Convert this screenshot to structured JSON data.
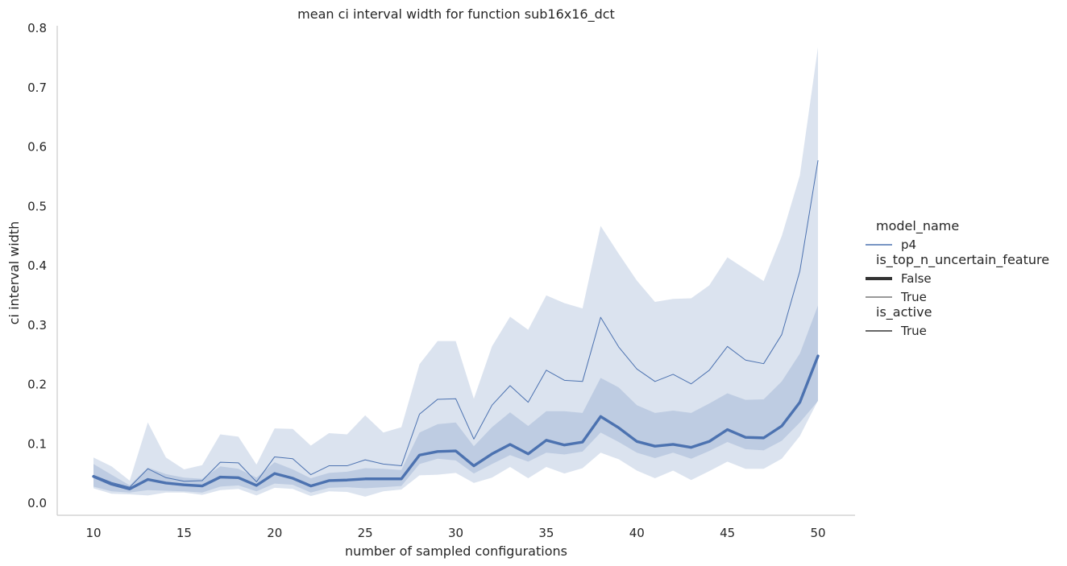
{
  "chart_data": {
    "type": "line",
    "title": "mean ci interval width for function sub16x16_dct",
    "xlabel": "number of sampled configurations",
    "ylabel": "ci interval width",
    "xlim": [
      8,
      52
    ],
    "ylim": [
      -0.022,
      0.8
    ],
    "xticks": [
      "10",
      "15",
      "20",
      "25",
      "30",
      "35",
      "40",
      "45",
      "50"
    ],
    "yticks": [
      "0.0",
      "0.1",
      "0.2",
      "0.3",
      "0.4",
      "0.5",
      "0.6",
      "0.7",
      "0.8"
    ],
    "grid": false,
    "legend_position": "right",
    "x": [
      10,
      11,
      12,
      13,
      14,
      15,
      16,
      17,
      18,
      19,
      20,
      21,
      22,
      23,
      24,
      25,
      26,
      27,
      28,
      29,
      30,
      31,
      32,
      33,
      34,
      35,
      36,
      37,
      38,
      39,
      40,
      41,
      42,
      43,
      44,
      45,
      46,
      47,
      48,
      49,
      50
    ],
    "series": [
      {
        "name": "False",
        "style": "thick",
        "color": "#4c72b0",
        "values": [
          0.045,
          0.032,
          0.024,
          0.04,
          0.034,
          0.031,
          0.029,
          0.044,
          0.043,
          0.03,
          0.05,
          0.042,
          0.029,
          0.038,
          0.039,
          0.041,
          0.041,
          0.041,
          0.081,
          0.087,
          0.088,
          0.063,
          0.083,
          0.099,
          0.083,
          0.106,
          0.098,
          0.103,
          0.146,
          0.127,
          0.104,
          0.096,
          0.099,
          0.094,
          0.104,
          0.124,
          0.111,
          0.11,
          0.13,
          0.17,
          0.248
        ],
        "ci_low": [
          0.028,
          0.02,
          0.018,
          0.022,
          0.021,
          0.02,
          0.018,
          0.028,
          0.03,
          0.02,
          0.033,
          0.031,
          0.018,
          0.026,
          0.027,
          0.025,
          0.027,
          0.029,
          0.066,
          0.075,
          0.072,
          0.05,
          0.066,
          0.081,
          0.07,
          0.085,
          0.082,
          0.087,
          0.119,
          0.103,
          0.085,
          0.076,
          0.085,
          0.075,
          0.088,
          0.103,
          0.091,
          0.089,
          0.105,
          0.136,
          0.172
        ],
        "ci_high": [
          0.066,
          0.048,
          0.03,
          0.06,
          0.049,
          0.043,
          0.041,
          0.062,
          0.058,
          0.043,
          0.069,
          0.057,
          0.042,
          0.051,
          0.053,
          0.059,
          0.058,
          0.056,
          0.119,
          0.133,
          0.136,
          0.096,
          0.128,
          0.153,
          0.13,
          0.155,
          0.155,
          0.152,
          0.211,
          0.195,
          0.165,
          0.152,
          0.156,
          0.152,
          0.168,
          0.185,
          0.174,
          0.175,
          0.205,
          0.252,
          0.333
        ]
      },
      {
        "name": "True",
        "style": "thin",
        "color": "#4c72b0",
        "values": [
          0.047,
          0.035,
          0.027,
          0.058,
          0.043,
          0.037,
          0.038,
          0.069,
          0.068,
          0.036,
          0.078,
          0.075,
          0.048,
          0.063,
          0.063,
          0.073,
          0.066,
          0.063,
          0.15,
          0.175,
          0.176,
          0.108,
          0.165,
          0.198,
          0.17,
          0.224,
          0.207,
          0.205,
          0.313,
          0.263,
          0.226,
          0.205,
          0.217,
          0.201,
          0.224,
          0.264,
          0.241,
          0.235,
          0.284,
          0.391,
          0.577
        ],
        "ci_low": [
          0.025,
          0.016,
          0.015,
          0.013,
          0.018,
          0.018,
          0.014,
          0.022,
          0.024,
          0.013,
          0.026,
          0.024,
          0.012,
          0.02,
          0.019,
          0.011,
          0.02,
          0.023,
          0.047,
          0.048,
          0.051,
          0.034,
          0.043,
          0.061,
          0.042,
          0.061,
          0.05,
          0.059,
          0.085,
          0.074,
          0.055,
          0.042,
          0.055,
          0.039,
          0.054,
          0.07,
          0.058,
          0.058,
          0.075,
          0.113,
          0.173
        ],
        "ci_high": [
          0.077,
          0.062,
          0.038,
          0.136,
          0.077,
          0.057,
          0.064,
          0.116,
          0.112,
          0.065,
          0.126,
          0.125,
          0.097,
          0.118,
          0.116,
          0.148,
          0.119,
          0.128,
          0.234,
          0.273,
          0.273,
          0.176,
          0.264,
          0.314,
          0.292,
          0.35,
          0.337,
          0.328,
          0.467,
          0.42,
          0.375,
          0.339,
          0.344,
          0.345,
          0.367,
          0.414,
          0.394,
          0.374,
          0.45,
          0.552,
          0.768
        ]
      }
    ],
    "legend": {
      "groups": [
        {
          "heading": "model_name",
          "items": [
            {
              "label": "p4",
              "style": "medium"
            }
          ]
        },
        {
          "heading": "is_top_n_uncertain_feature",
          "items": [
            {
              "label": "False",
              "style": "thick"
            },
            {
              "label": "True",
              "style": "thin"
            }
          ]
        },
        {
          "heading": "is_active",
          "items": [
            {
              "label": "True",
              "style": "dark"
            }
          ]
        }
      ]
    },
    "colors": {
      "line": "#4c72b0",
      "band": "#4c72b0",
      "axis": "#cccccc",
      "text": "#262626"
    }
  }
}
